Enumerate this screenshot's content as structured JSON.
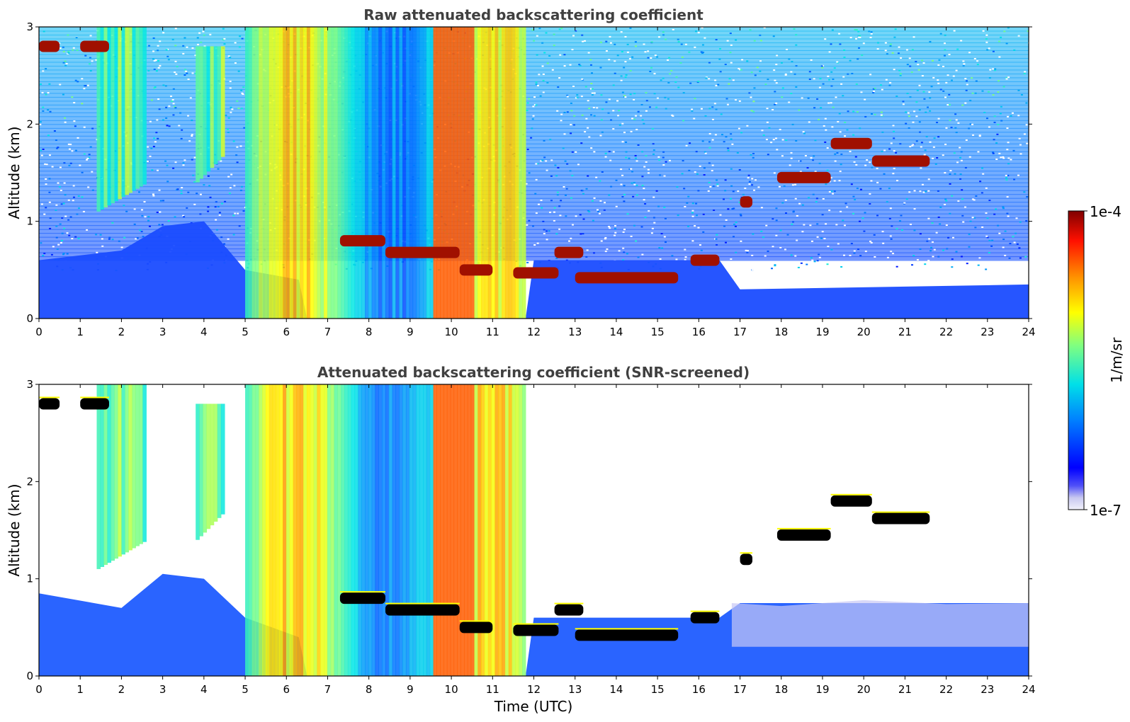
{
  "chart_data": [
    {
      "type": "heatmap",
      "title": "Raw attenuated backscattering coefficient",
      "xlabel": "",
      "ylabel": "Altitude (km)",
      "xlim": [
        0,
        24
      ],
      "ylim": [
        0,
        3
      ],
      "xticks": [
        "0",
        "1",
        "2",
        "3",
        "4",
        "5",
        "6",
        "7",
        "8",
        "9",
        "10",
        "11",
        "12",
        "13",
        "14",
        "15",
        "16",
        "17",
        "18",
        "19",
        "20",
        "21",
        "22",
        "23",
        "24"
      ],
      "yticks": [
        "0",
        "1",
        "2",
        "3"
      ],
      "colormap": "jet",
      "background": "noisy",
      "features": {
        "boundary_layer": [
          {
            "t": 0,
            "top": 0.6
          },
          {
            "t": 2,
            "top": 0.7
          },
          {
            "t": 3,
            "top": 0.95
          },
          {
            "t": 4,
            "top": 1.0
          },
          {
            "t": 5,
            "top": 0.5
          },
          {
            "t": 6.3,
            "top": 0.4
          },
          {
            "t": 6.5,
            "top": 0.0
          },
          {
            "t": 11.8,
            "top": 0.0
          },
          {
            "t": 12,
            "top": 0.6
          },
          {
            "t": 16.5,
            "top": 0.6
          },
          {
            "t": 17,
            "top": 0.3
          },
          {
            "t": 24,
            "top": 0.35
          }
        ],
        "precipitation_streaks": [
          {
            "t_start": 1.4,
            "t_end": 2.6,
            "alt_top": 3.0,
            "alt_bottom": 1.1
          },
          {
            "t_start": 3.8,
            "t_end": 4.5,
            "alt_top": 2.8,
            "alt_bottom": 1.4
          },
          {
            "t_start": 5.0,
            "t_end": 11.8,
            "alt_top": 3.0,
            "alt_bottom": 0.0
          }
        ],
        "cloud_layers": [
          {
            "t_start": 0.0,
            "t_end": 0.5,
            "alt": 2.8
          },
          {
            "t_start": 1.0,
            "t_end": 1.7,
            "alt": 2.8
          },
          {
            "t_start": 7.3,
            "t_end": 8.4,
            "alt": 0.8
          },
          {
            "t_start": 8.4,
            "t_end": 10.2,
            "alt": 0.68
          },
          {
            "t_start": 10.2,
            "t_end": 11.0,
            "alt": 0.5
          },
          {
            "t_start": 11.5,
            "t_end": 12.6,
            "alt": 0.47
          },
          {
            "t_start": 12.5,
            "t_end": 13.2,
            "alt": 0.68
          },
          {
            "t_start": 13.0,
            "t_end": 15.5,
            "alt": 0.42
          },
          {
            "t_start": 15.8,
            "t_end": 16.5,
            "alt": 0.6
          },
          {
            "t_start": 17.0,
            "t_end": 17.3,
            "alt": 1.2
          },
          {
            "t_start": 17.9,
            "t_end": 19.2,
            "alt": 1.45
          },
          {
            "t_start": 19.2,
            "t_end": 20.2,
            "alt": 1.8
          },
          {
            "t_start": 20.2,
            "t_end": 21.6,
            "alt": 1.62
          }
        ]
      }
    },
    {
      "type": "heatmap",
      "title": "Attenuated backscattering coefficient (SNR-screened)",
      "xlabel": "Time (UTC)",
      "ylabel": "Altitude (km)",
      "xlim": [
        0,
        24
      ],
      "ylim": [
        0,
        3
      ],
      "xticks": [
        "0",
        "1",
        "2",
        "3",
        "4",
        "5",
        "6",
        "7",
        "8",
        "9",
        "10",
        "11",
        "12",
        "13",
        "14",
        "15",
        "16",
        "17",
        "18",
        "19",
        "20",
        "21",
        "22",
        "23",
        "24"
      ],
      "yticks": [
        "0",
        "1",
        "2",
        "3"
      ],
      "colormap": "jet",
      "background": "white",
      "saturated_color": "#000000",
      "features": {
        "boundary_layer": [
          {
            "t": 0,
            "top": 0.85
          },
          {
            "t": 2,
            "top": 0.7
          },
          {
            "t": 3,
            "top": 1.05
          },
          {
            "t": 4,
            "top": 1.0
          },
          {
            "t": 5,
            "top": 0.6
          },
          {
            "t": 6.3,
            "top": 0.4
          },
          {
            "t": 6.5,
            "top": 0.0
          },
          {
            "t": 11.8,
            "top": 0.0
          },
          {
            "t": 12,
            "top": 0.6
          },
          {
            "t": 16.5,
            "top": 0.6
          },
          {
            "t": 17,
            "top": 0.75
          },
          {
            "t": 24,
            "top": 0.75
          }
        ]
      }
    }
  ],
  "colorbar": {
    "min_label": "1e-7",
    "max_label": "1e-4",
    "label": "1/m/sr"
  },
  "colors": {
    "title": "#404040"
  }
}
